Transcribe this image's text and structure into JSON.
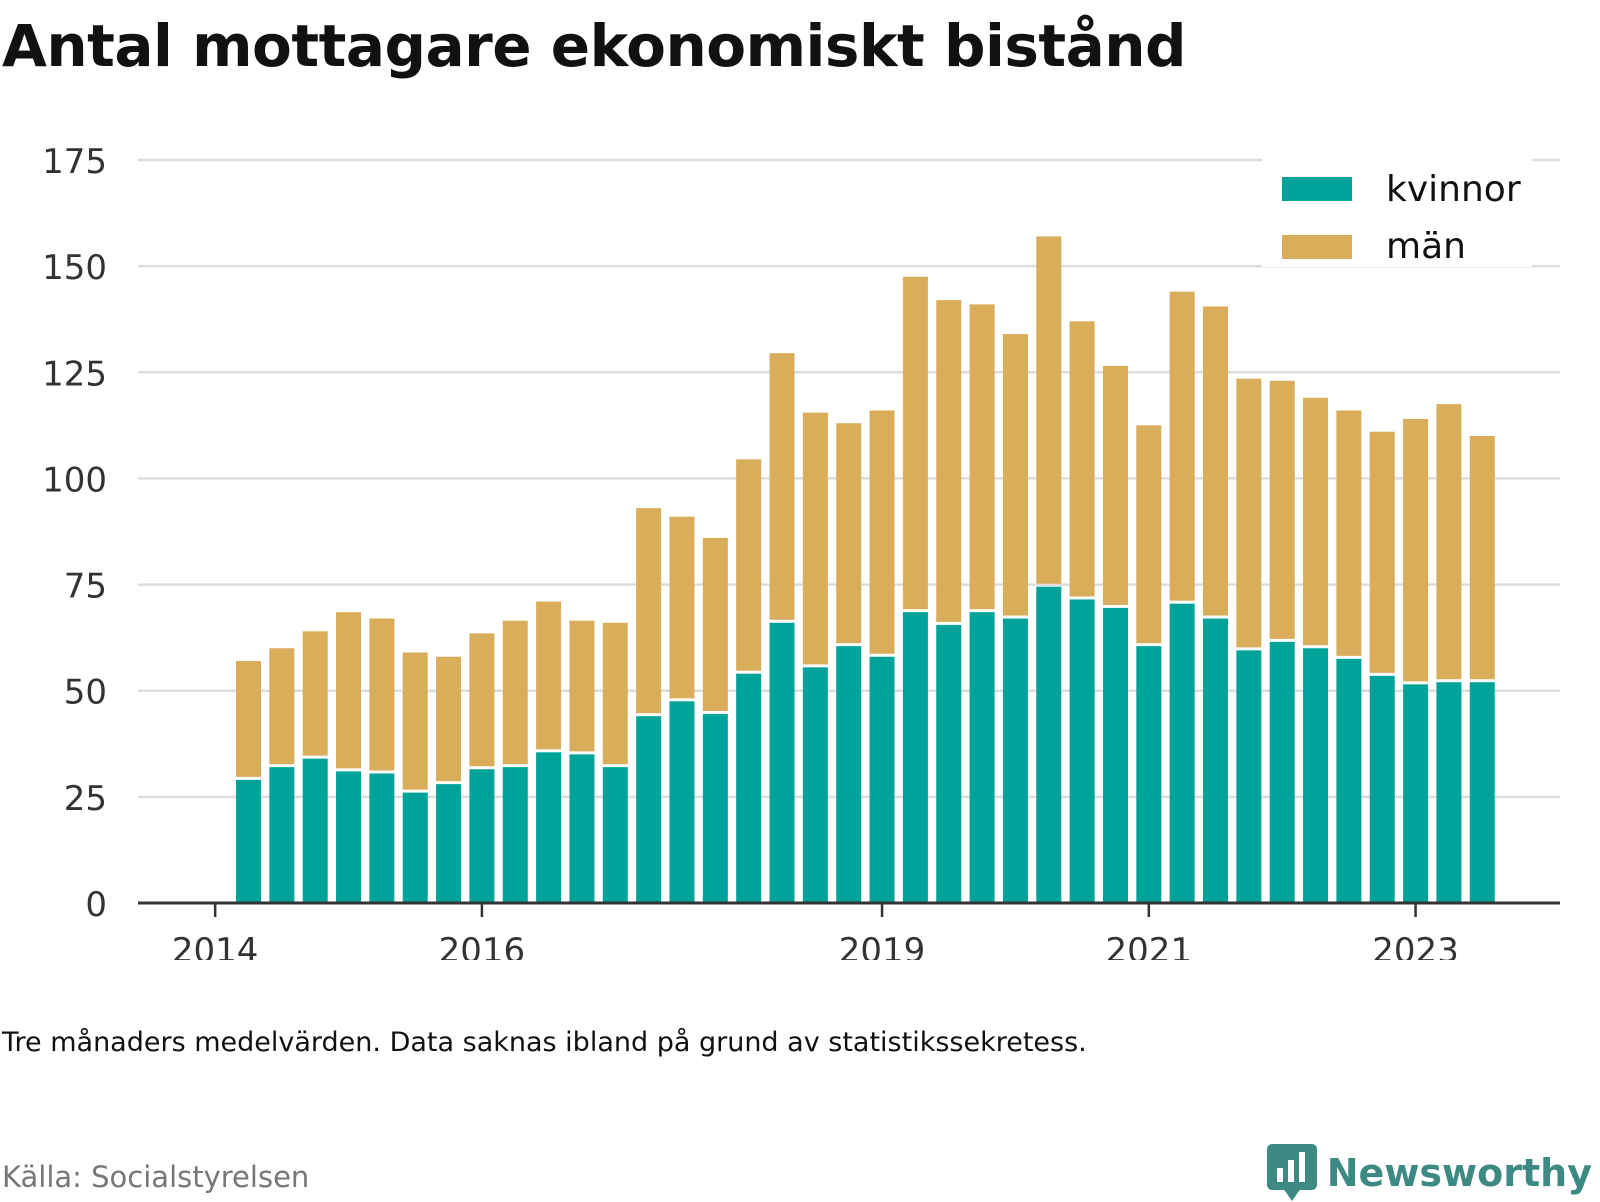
{
  "title": "Antal mottagare ekonomiskt bistånd",
  "footnote": "Tre månaders medelvärden. Data saknas ibland på grund av statistikssekretess.",
  "source": "Källa: Socialstyrelsen",
  "brand": {
    "name": "Newsworthy",
    "icon": "newsworthy-logo-icon"
  },
  "colors": {
    "kvinnor": "#00a39a",
    "man": "#d9ad5a",
    "grid": "#dddddd",
    "axis": "#333333"
  },
  "chart_data": {
    "type": "bar",
    "stacked": true,
    "ylim": [
      0,
      175
    ],
    "yticks": [
      0,
      25,
      50,
      75,
      100,
      125,
      150,
      175
    ],
    "xticks": [
      {
        "label": "2014",
        "x": "2014-01"
      },
      {
        "label": "2016",
        "x": "2016-01"
      },
      {
        "label": "2019",
        "x": "2019-01"
      },
      {
        "label": "2021",
        "x": "2021-01"
      },
      {
        "label": "2023",
        "x": "2023-01"
      }
    ],
    "legend": {
      "position": "top-right",
      "entries": [
        "kvinnor",
        "män"
      ]
    },
    "x": [
      "2014-04",
      "2014-07",
      "2014-10",
      "2015-01",
      "2015-04",
      "2015-07",
      "2015-10",
      "2016-01",
      "2016-04",
      "2016-07",
      "2016-10",
      "2017-01",
      "2017-04",
      "2017-07",
      "2017-10",
      "2018-01",
      "2018-04",
      "2018-07",
      "2018-10",
      "2019-01",
      "2019-04",
      "2019-07",
      "2019-10",
      "2020-01",
      "2020-04",
      "2020-07",
      "2020-10",
      "2021-01",
      "2021-04",
      "2021-07",
      "2021-10",
      "2022-01",
      "2022-04",
      "2022-07",
      "2022-10",
      "2023-01",
      "2023-04",
      "2023-07"
    ],
    "series": [
      {
        "name": "kvinnor",
        "values": [
          29,
          32,
          34,
          31,
          30.5,
          26,
          28,
          31.5,
          32,
          35.5,
          35,
          32,
          44,
          47.5,
          44.5,
          54,
          66,
          55.5,
          60.5,
          58,
          68.5,
          65.5,
          68.5,
          67,
          74.5,
          71.5,
          69.5,
          60.5,
          70.5,
          67,
          59.5,
          61.5,
          60,
          57.5,
          53.5,
          51.5,
          52,
          52
        ]
      },
      {
        "name": "män",
        "values": [
          28,
          28,
          30,
          37.5,
          36.5,
          33,
          30,
          32,
          34.5,
          35.5,
          31.5,
          34,
          49,
          43.5,
          41.5,
          50.5,
          63.5,
          60,
          52.5,
          58,
          79,
          76.5,
          72.5,
          67,
          82.5,
          65.5,
          57,
          52,
          73.5,
          73.5,
          64,
          61.5,
          59,
          58.5,
          57.5,
          62.5,
          65.5,
          58
        ]
      }
    ]
  }
}
